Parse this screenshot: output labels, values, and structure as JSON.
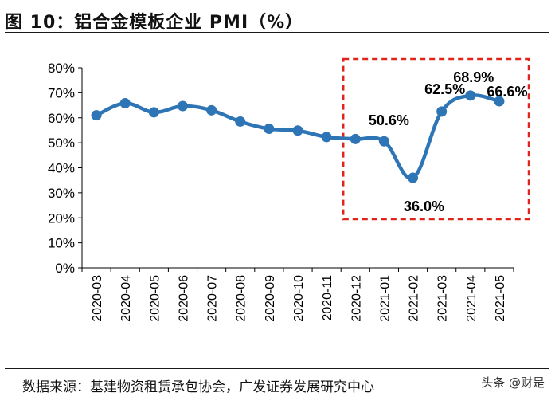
{
  "header": {
    "title": "图 10：铝合金模板企业 PMI（%）"
  },
  "footer": {
    "source": "数据来源：基建物资租赁承包协会，广发证券发展研究中心",
    "watermark": "头条 @财是"
  },
  "colors": {
    "series": "#2e75b6",
    "highlight_box": "#e0241b",
    "axis": "#000000",
    "text": "#000000"
  },
  "chart_data": {
    "type": "line",
    "title": "",
    "xlabel": "",
    "ylabel": "",
    "categories": [
      "2020-03",
      "2020-04",
      "2020-05",
      "2020-06",
      "2020-07",
      "2020-08",
      "2020-09",
      "2020-10",
      "2020-11",
      "2020-12",
      "2021-01",
      "2021-02",
      "2021-03",
      "2021-04",
      "2021-05"
    ],
    "series": [
      {
        "values": [
          61.0,
          65.8,
          62.2,
          64.7,
          63.0,
          58.5,
          55.6,
          54.9,
          52.3,
          51.5,
          50.6,
          36.0,
          62.5,
          68.9,
          66.6
        ]
      }
    ],
    "ylim": [
      0,
      80
    ],
    "yticks": [
      "0%",
      "10%",
      "20%",
      "30%",
      "40%",
      "50%",
      "60%",
      "70%",
      "80%"
    ],
    "grid": false,
    "legend": "none",
    "data_labels": [
      {
        "index": 10,
        "text": "50.6%"
      },
      {
        "index": 11,
        "text": "36.0%"
      },
      {
        "index": 12,
        "text": "62.5%"
      },
      {
        "index": 13,
        "text": "68.9%"
      },
      {
        "index": 14,
        "text": "66.6%"
      }
    ],
    "highlight_range": [
      "2020-12",
      "2021-05"
    ]
  }
}
